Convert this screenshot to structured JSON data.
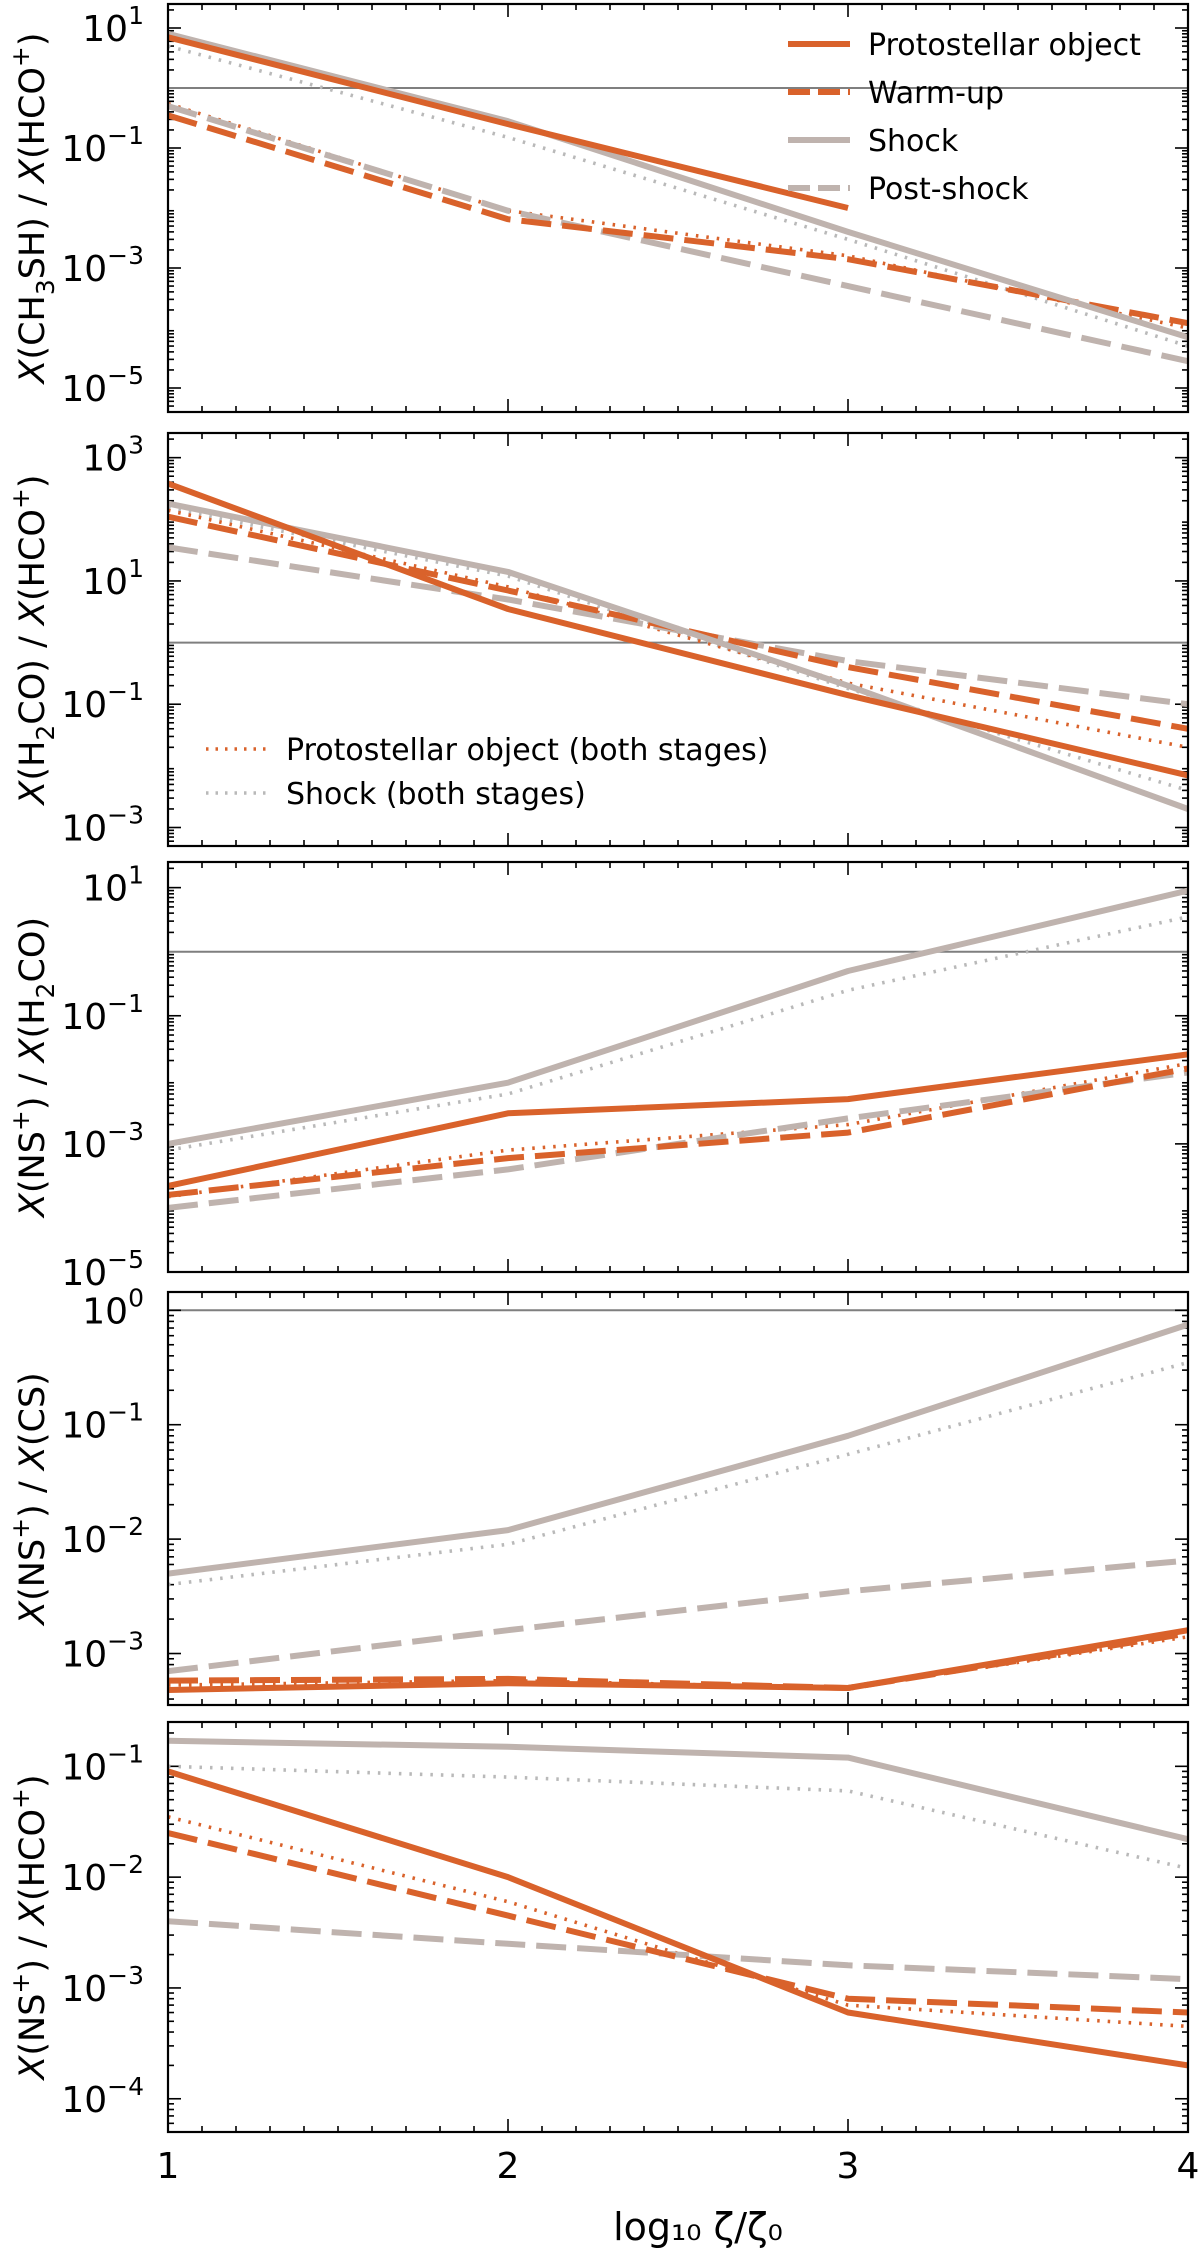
{
  "colors": {
    "protostellar": "#d9622b",
    "shock": "#bfb3ae",
    "shock_dotted": "#b9b9b9",
    "reference_line": "#7f7f7f"
  },
  "chart_data": {
    "type": "line",
    "shared_x": [
      1,
      2,
      3,
      4
    ],
    "xlabel": "log₁₀ ζ/ζ₀",
    "xlim": [
      1,
      4
    ],
    "xticks": [
      "1",
      "2",
      "3",
      "4"
    ],
    "legend_top": [
      {
        "label": "Protostellar object",
        "color": "#d9622b",
        "style": "solid"
      },
      {
        "label": "Warm-up",
        "color": "#d9622b",
        "style": "dashed"
      },
      {
        "label": "Shock",
        "color": "#bfb3ae",
        "style": "solid"
      },
      {
        "label": "Post-shock",
        "color": "#bfb3ae",
        "style": "dashed"
      }
    ],
    "legend_second": [
      {
        "label": "Protostellar object (both stages)",
        "color": "#d9622b",
        "style": "dotted"
      },
      {
        "label": "Shock (both stages)",
        "color": "#b9b9b9",
        "style": "dotted"
      }
    ],
    "panels": [
      {
        "ylabel_parts": [
          {
            "t": "X",
            "i": true
          },
          {
            "t": "(CH"
          },
          {
            "t": "3",
            "sub": true
          },
          {
            "t": "SH) / "
          },
          {
            "t": "X",
            "i": true
          },
          {
            "t": "(HCO"
          },
          {
            "t": "+",
            "sup": true
          },
          {
            "t": ")"
          }
        ],
        "ylim_log": [
          -5.4,
          1.4
        ],
        "yticks": [
          {
            "exp": 1,
            "label": "10"
          },
          {
            "exp": -1,
            "label": "10"
          },
          {
            "exp": -3,
            "label": "10"
          },
          {
            "exp": -5,
            "label": "10"
          }
        ],
        "ytick_exps": [
          "1",
          "−1",
          "−3",
          "−5"
        ],
        "reference_line": 1,
        "series": [
          {
            "name": "Protostellar object",
            "style": "solid",
            "color": "#d9622b",
            "x": [
              1,
              2,
              3
            ],
            "y": [
              7,
              0.25,
              0.01
            ]
          },
          {
            "name": "Warm-up",
            "style": "dashed",
            "color": "#d9622b",
            "x": [
              1,
              2,
              3,
              4
            ],
            "y": [
              0.35,
              0.0065,
              0.0014,
              0.00012
            ]
          },
          {
            "name": "Protostellar object (both stages)",
            "style": "dotted",
            "color": "#d9622b",
            "x": [
              1,
              2,
              3,
              4
            ],
            "y": [
              0.55,
              0.009,
              0.0016,
              0.0001
            ]
          },
          {
            "name": "Shock",
            "style": "solid",
            "color": "#bfb3ae",
            "x": [
              1,
              2,
              3,
              4
            ],
            "y": [
              8,
              0.28,
              0.004,
              7e-05
            ]
          },
          {
            "name": "Post-shock",
            "style": "dashed",
            "color": "#bfb3ae",
            "x": [
              1,
              2,
              3,
              4
            ],
            "y": [
              0.5,
              0.009,
              0.0005,
              2.8e-05
            ]
          },
          {
            "name": "Shock (both stages)",
            "style": "dotted",
            "color": "#b9b9b9",
            "x": [
              1,
              2,
              3,
              4
            ],
            "y": [
              5,
              0.15,
              0.003,
              5e-05
            ]
          }
        ]
      },
      {
        "ylabel_parts": [
          {
            "t": "X",
            "i": true
          },
          {
            "t": "(H"
          },
          {
            "t": "2",
            "sub": true
          },
          {
            "t": "CO) / "
          },
          {
            "t": "X",
            "i": true
          },
          {
            "t": "(HCO"
          },
          {
            "t": "+",
            "sup": true
          },
          {
            "t": ")"
          }
        ],
        "ylim_log": [
          -3.3,
          3.4
        ],
        "yticks": [
          {
            "exp": 3,
            "label": "10"
          },
          {
            "exp": 1,
            "label": "10"
          },
          {
            "exp": -1,
            "label": "10"
          },
          {
            "exp": -3,
            "label": "10"
          }
        ],
        "ytick_exps": [
          "3",
          "1",
          "−1",
          "−3"
        ],
        "reference_line": 1,
        "series": [
          {
            "name": "Protostellar object",
            "style": "solid",
            "color": "#d9622b",
            "x": [
              1,
              2,
              3,
              4
            ],
            "y": [
              380,
              3.5,
              0.14,
              0.007
            ]
          },
          {
            "name": "Warm-up",
            "style": "dashed",
            "color": "#d9622b",
            "x": [
              1,
              2,
              3,
              4
            ],
            "y": [
              110,
              7,
              0.4,
              0.04
            ]
          },
          {
            "name": "Protostellar object (both stages)",
            "style": "dotted",
            "color": "#d9622b",
            "x": [
              1,
              2,
              3,
              4
            ],
            "y": [
              140,
              8,
              0.22,
              0.02
            ]
          },
          {
            "name": "Shock",
            "style": "solid",
            "color": "#bfb3ae",
            "x": [
              1,
              2,
              3,
              4
            ],
            "y": [
              180,
              14,
              0.2,
              0.002
            ]
          },
          {
            "name": "Post-shock",
            "style": "dashed",
            "color": "#bfb3ae",
            "x": [
              1,
              2,
              3,
              4
            ],
            "y": [
              35,
              5,
              0.5,
              0.1
            ]
          },
          {
            "name": "Shock (both stages)",
            "style": "dotted",
            "color": "#b9b9b9",
            "x": [
              1,
              2,
              3,
              4
            ],
            "y": [
              150,
              12,
              0.18,
              0.004
            ]
          }
        ]
      },
      {
        "ylabel_parts": [
          {
            "t": "X",
            "i": true
          },
          {
            "t": "(NS"
          },
          {
            "t": "+",
            "sup": true
          },
          {
            "t": ") / "
          },
          {
            "t": "X",
            "i": true
          },
          {
            "t": "(H"
          },
          {
            "t": "2",
            "sub": true
          },
          {
            "t": "CO)"
          }
        ],
        "ylim_log": [
          -5,
          1.4
        ],
        "yticks": [
          {
            "exp": 1,
            "label": "10"
          },
          {
            "exp": -1,
            "label": "10"
          },
          {
            "exp": -3,
            "label": "10"
          },
          {
            "exp": -5,
            "label": "10"
          }
        ],
        "ytick_exps": [
          "1",
          "−1",
          "−3",
          "−5"
        ],
        "reference_line": 1,
        "series": [
          {
            "name": "Protostellar object",
            "style": "solid",
            "color": "#d9622b",
            "x": [
              1,
              2,
              3,
              4
            ],
            "y": [
              0.00022,
              0.003,
              0.005,
              0.025
            ]
          },
          {
            "name": "Warm-up",
            "style": "dashed",
            "color": "#d9622b",
            "x": [
              1,
              2,
              3,
              4
            ],
            "y": [
              0.00016,
              0.0006,
              0.0015,
              0.015
            ]
          },
          {
            "name": "Protostellar object (both stages)",
            "style": "dotted",
            "color": "#d9622b",
            "x": [
              1,
              2,
              3,
              4
            ],
            "y": [
              0.00015,
              0.0008,
              0.002,
              0.018
            ]
          },
          {
            "name": "Shock",
            "style": "solid",
            "color": "#bfb3ae",
            "x": [
              1,
              2,
              3,
              4
            ],
            "y": [
              0.001,
              0.009,
              0.5,
              9
            ]
          },
          {
            "name": "Post-shock",
            "style": "dashed",
            "color": "#bfb3ae",
            "x": [
              1,
              2,
              3,
              4
            ],
            "y": [
              0.0001,
              0.0004,
              0.0025,
              0.013
            ]
          },
          {
            "name": "Shock (both stages)",
            "style": "dotted",
            "color": "#b9b9b9",
            "x": [
              1,
              2,
              3,
              4
            ],
            "y": [
              0.0008,
              0.006,
              0.25,
              3.5
            ]
          }
        ]
      },
      {
        "ylabel_parts": [
          {
            "t": "X",
            "i": true
          },
          {
            "t": "(NS"
          },
          {
            "t": "+",
            "sup": true
          },
          {
            "t": ") / "
          },
          {
            "t": "X",
            "i": true
          },
          {
            "t": "(CS)"
          }
        ],
        "ylim_log": [
          -3.45,
          0.16
        ],
        "yticks": [
          {
            "exp": 0,
            "label": "10"
          },
          {
            "exp": -1,
            "label": "10"
          },
          {
            "exp": -2,
            "label": "10"
          },
          {
            "exp": -3,
            "label": "10"
          }
        ],
        "ytick_exps": [
          "0",
          "−1",
          "−2",
          "−3"
        ],
        "reference_line": 1,
        "series": [
          {
            "name": "Protostellar object",
            "style": "solid",
            "color": "#d9622b",
            "x": [
              1,
              2,
              3,
              4
            ],
            "y": [
              0.00048,
              0.00055,
              0.0005,
              0.0016
            ]
          },
          {
            "name": "Warm-up",
            "style": "dashed",
            "color": "#d9622b",
            "x": [
              1,
              2,
              3,
              4
            ],
            "y": [
              0.00058,
              0.0006,
              0.0005,
              0.0015
            ]
          },
          {
            "name": "Protostellar object (both stages)",
            "style": "dotted",
            "color": "#d9622b",
            "x": [
              1,
              2,
              3,
              4
            ],
            "y": [
              0.00053,
              0.00058,
              0.0005,
              0.0014
            ]
          },
          {
            "name": "Shock",
            "style": "solid",
            "color": "#bfb3ae",
            "x": [
              1,
              2,
              3,
              4
            ],
            "y": [
              0.005,
              0.012,
              0.08,
              0.75
            ]
          },
          {
            "name": "Post-shock",
            "style": "dashed",
            "color": "#bfb3ae",
            "x": [
              1,
              2,
              3,
              4
            ],
            "y": [
              0.0007,
              0.0016,
              0.0035,
              0.0065
            ]
          },
          {
            "name": "Shock (both stages)",
            "style": "dotted",
            "color": "#b9b9b9",
            "x": [
              1,
              2,
              3,
              4
            ],
            "y": [
              0.004,
              0.009,
              0.055,
              0.35
            ]
          }
        ]
      },
      {
        "ylabel_parts": [
          {
            "t": "X",
            "i": true
          },
          {
            "t": "(NS"
          },
          {
            "t": "+",
            "sup": true
          },
          {
            "t": ") / "
          },
          {
            "t": "X",
            "i": true
          },
          {
            "t": "(HCO"
          },
          {
            "t": "+",
            "sup": true
          },
          {
            "t": ")"
          }
        ],
        "ylim_log": [
          -4.3,
          -0.6
        ],
        "yticks": [
          {
            "exp": -1,
            "label": "10"
          },
          {
            "exp": -2,
            "label": "10"
          },
          {
            "exp": -3,
            "label": "10"
          },
          {
            "exp": -4,
            "label": "10"
          }
        ],
        "ytick_exps": [
          "−1",
          "−2",
          "−3",
          "−4"
        ],
        "reference_line": null,
        "series": [
          {
            "name": "Protostellar object",
            "style": "solid",
            "color": "#d9622b",
            "x": [
              1,
              2,
              3,
              4
            ],
            "y": [
              0.09,
              0.01,
              0.0006,
              0.0002
            ]
          },
          {
            "name": "Warm-up",
            "style": "dashed",
            "color": "#d9622b",
            "x": [
              1,
              2,
              3,
              4
            ],
            "y": [
              0.025,
              0.0045,
              0.0008,
              0.0006
            ]
          },
          {
            "name": "Protostellar object (both stages)",
            "style": "dotted",
            "color": "#d9622b",
            "x": [
              1,
              2,
              3,
              4
            ],
            "y": [
              0.035,
              0.006,
              0.0007,
              0.00045
            ]
          },
          {
            "name": "Shock",
            "style": "solid",
            "color": "#bfb3ae",
            "x": [
              1,
              2,
              3,
              4
            ],
            "y": [
              0.17,
              0.15,
              0.12,
              0.022
            ]
          },
          {
            "name": "Post-shock",
            "style": "dashed",
            "color": "#bfb3ae",
            "x": [
              1,
              2,
              3,
              4
            ],
            "y": [
              0.004,
              0.0025,
              0.0016,
              0.0012
            ]
          },
          {
            "name": "Shock (both stages)",
            "style": "dotted",
            "color": "#b9b9b9",
            "x": [
              1,
              2,
              3,
              4
            ],
            "y": [
              0.1,
              0.08,
              0.06,
              0.012
            ]
          }
        ]
      }
    ]
  }
}
